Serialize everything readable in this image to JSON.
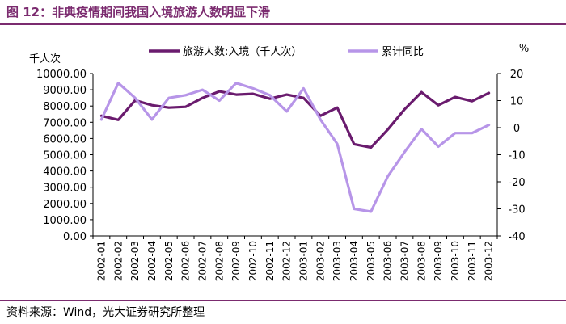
{
  "header": {
    "title": "图 12：非典疫情期间我国入境旅游人数明显下滑"
  },
  "footer": {
    "source": "资料来源：Wind，光大证券研究所整理"
  },
  "colors": {
    "accent": "#7b2b6f",
    "series1": "#6a1b6e",
    "series2": "#b795e8"
  },
  "chart_data": {
    "type": "line",
    "title": "",
    "y_left_unit": "千人次",
    "y_right_unit": "%",
    "ylim_left": [
      0,
      10000
    ],
    "ylim_right": [
      -40,
      20
    ],
    "grid": false,
    "legend_position": "top",
    "y_left_ticks": [
      "10000.00",
      "9000.00",
      "8000.00",
      "7000.00",
      "6000.00",
      "5000.00",
      "4000.00",
      "3000.00",
      "2000.00",
      "1000.00",
      "0.00"
    ],
    "y_right_ticks": [
      "20",
      "10",
      "0",
      "-10",
      "-20",
      "-30",
      "-40"
    ],
    "categories": [
      "2002-01",
      "2002-02",
      "2002-03",
      "2002-04",
      "2002-05",
      "2002-06",
      "2002-07",
      "2002-08",
      "2002-09",
      "2002-10",
      "2002-11",
      "2002-12",
      "2003-01",
      "2003-02",
      "2003-03",
      "2003-04",
      "2003-05",
      "2003-06",
      "2003-07",
      "2003-08",
      "2003-09",
      "2003-10",
      "2003-11",
      "2003-12"
    ],
    "series": [
      {
        "name": "旅游人数:入境（千人次）",
        "axis": "left",
        "values": [
          7400,
          7150,
          8350,
          8050,
          7900,
          7950,
          8500,
          8900,
          8700,
          8750,
          8450,
          8700,
          8500,
          7400,
          7900,
          5650,
          5450,
          6550,
          7800,
          8850,
          8050,
          8550,
          8300,
          8800
        ]
      },
      {
        "name": "累计同比",
        "axis": "right",
        "values": [
          3,
          16.5,
          11,
          3,
          11,
          12,
          14,
          10,
          16.5,
          14.5,
          12,
          6,
          14.5,
          3,
          -6,
          -30,
          -31,
          -18,
          -9,
          -0.5,
          -7,
          -2,
          -2,
          1
        ]
      }
    ]
  }
}
